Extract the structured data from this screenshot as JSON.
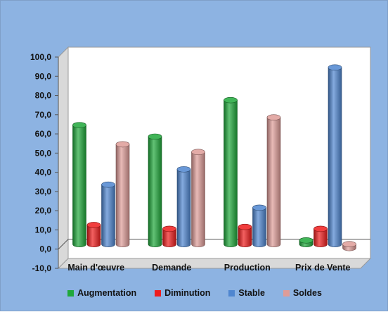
{
  "chart_data": {
    "type": "bar",
    "categories": [
      "Main d'œuvre",
      "Demande",
      "Production",
      "Prix de Vente"
    ],
    "series": [
      {
        "name": "Augmentation",
        "color": "#1fa83a",
        "values": [
          62.0,
          56.0,
          75.0,
          2.0
        ]
      },
      {
        "name": "Diminution",
        "color": "#ee1c1c",
        "values": [
          10.0,
          8.0,
          9.0,
          8.0
        ]
      },
      {
        "name": "Stable",
        "color": "#4f86d0",
        "values": [
          31.0,
          39.0,
          19.0,
          92.0
        ]
      },
      {
        "name": "Soldes",
        "color": "#de9c98",
        "values": [
          52.0,
          48.0,
          66.0,
          -2.0
        ]
      }
    ],
    "yticks": [
      "-10,0",
      "0,0",
      "10,0",
      "20,0",
      "30,0",
      "40,0",
      "50,0",
      "60,0",
      "70,0",
      "80,0",
      "90,0",
      "100,0"
    ],
    "ylim": [
      -10,
      100
    ],
    "grid": false,
    "legend_position": "bottom",
    "style": "3d-cylinder"
  }
}
